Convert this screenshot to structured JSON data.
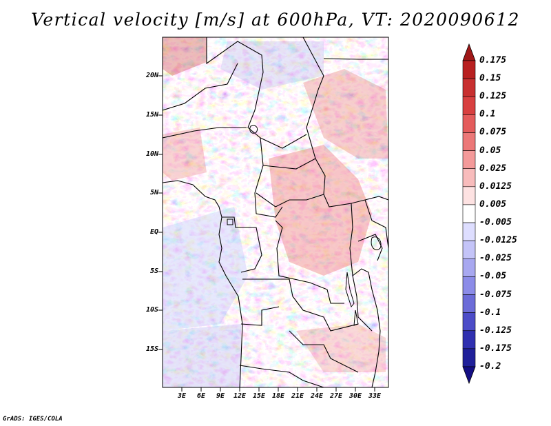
{
  "title": "Vertical velocity [m/s] at 600hPa, VT: 2020090612",
  "credit": "GrADS: IGES/COLA",
  "map": {
    "lat_range": [
      -20,
      25
    ],
    "lon_range": [
      0,
      35
    ],
    "lat_labels": [
      "20N",
      "15N",
      "10N",
      "5N",
      "EQ",
      "5S",
      "10S",
      "15S"
    ],
    "lon_labels": [
      "3E",
      "6E",
      "9E",
      "12E",
      "15E",
      "18E",
      "21E",
      "24E",
      "27E",
      "30E",
      "33E"
    ]
  },
  "colorbar": {
    "labels": [
      "0.175",
      "0.15",
      "0.125",
      "0.1",
      "0.075",
      "0.05",
      "0.025",
      "0.0125",
      "0.005",
      "-0.005",
      "-0.0125",
      "-0.025",
      "-0.05",
      "-0.075",
      "-0.1",
      "-0.125",
      "-0.175",
      "-0.2"
    ],
    "colors": [
      "#a01818",
      "#b82020",
      "#c83030",
      "#d84040",
      "#e45c5c",
      "#ec7878",
      "#f49a9a",
      "#f8bcbc",
      "#fde2e2",
      "#ffffff",
      "#dedeff",
      "#c4c4f8",
      "#a8a8f0",
      "#8c8ce8",
      "#6c6cd8",
      "#4c4cc8",
      "#3030b0",
      "#20209a",
      "#140e84"
    ]
  }
}
